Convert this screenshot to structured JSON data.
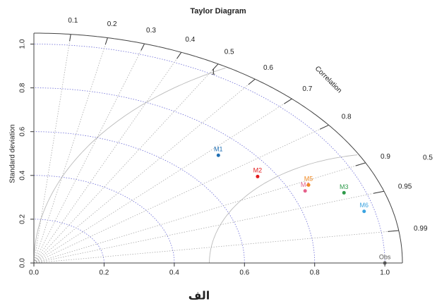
{
  "chart_data": {
    "type": "taylor",
    "title": "Taylor Diagram",
    "ylabel": "Standard deviation",
    "corr_label": "Correlation",
    "annotation": "الف",
    "side_note": "0.5",
    "categories": [
      "M1",
      "M2",
      "M3",
      "M4",
      "M5",
      "M6",
      "Obs"
    ],
    "sd": [
      0.72,
      0.75,
      0.94,
      0.84,
      0.86,
      0.97,
      1.0
    ],
    "correlation": [
      0.73,
      0.85,
      0.94,
      0.92,
      0.91,
      0.97,
      1.0
    ],
    "colors": [
      "#1f6fb4",
      "#e31a1c",
      "#2e9a4a",
      "#e5608a",
      "#f08a24",
      "#3aa3e0",
      "#555555"
    ],
    "xlim": [
      0,
      1.05
    ],
    "ylim": [
      0,
      1.05
    ],
    "xticks": [
      {
        "value": 0,
        "label": "0.0"
      },
      {
        "value": 0.2,
        "label": "0.2"
      },
      {
        "value": 0.4,
        "label": "0.4"
      },
      {
        "value": 0.6,
        "label": "0.6"
      },
      {
        "value": 0.8,
        "label": "0.8"
      },
      {
        "value": 1,
        "label": "1.0"
      }
    ],
    "yticks": [
      {
        "value": 0,
        "label": "0.0"
      },
      {
        "value": 0.2,
        "label": "0.2"
      },
      {
        "value": 0.4,
        "label": "0.4"
      },
      {
        "value": 0.6,
        "label": "0.6"
      },
      {
        "value": 0.8,
        "label": "0.8"
      },
      {
        "value": 1,
        "label": "1.0"
      }
    ],
    "corr_ticks": [
      0.1,
      0.2,
      0.3,
      0.4,
      0.5,
      0.6,
      0.7,
      0.8,
      0.9,
      0.95,
      0.99
    ],
    "rms_ticks": [
      0.5,
      1
    ]
  }
}
